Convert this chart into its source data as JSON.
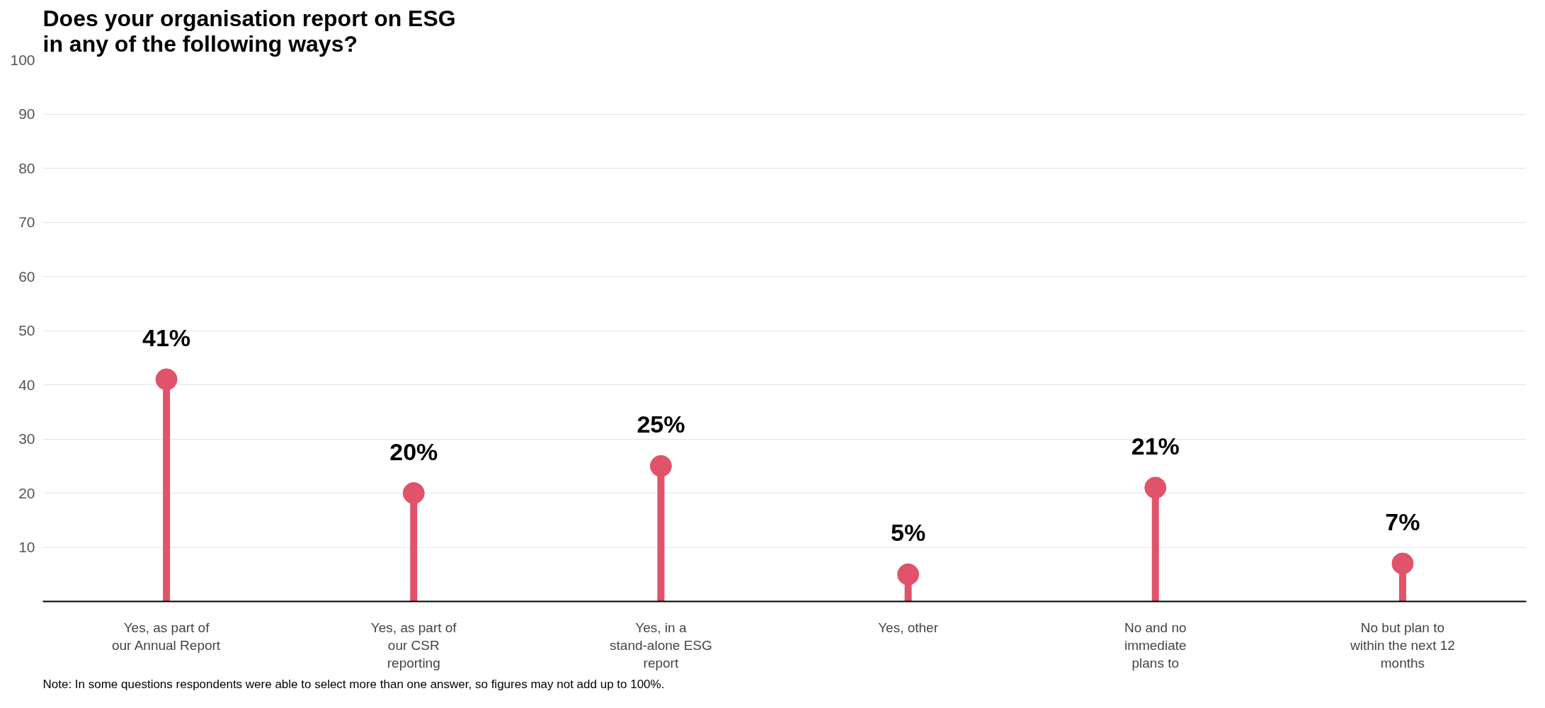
{
  "chart_data": {
    "type": "lollipop",
    "title": "Does your organisation report on ESG\nin any of the following ways?",
    "categories": [
      "Yes, as part of\nour Annual Report",
      "Yes, as part of\nour CSR\nreporting",
      "Yes, in a\nstand-alone ESG\nreport",
      "Yes, other",
      "No and no\nimmediate\nplans to",
      "No but plan to\nwithin the next 12\nmonths"
    ],
    "values": [
      41,
      20,
      25,
      5,
      21,
      7
    ],
    "value_labels": [
      "41%",
      "20%",
      "25%",
      "5%",
      "21%",
      "7%"
    ],
    "color": "#e0536a",
    "ylim": [
      0,
      100
    ],
    "yticks": [
      10,
      20,
      30,
      40,
      50,
      60,
      70,
      80,
      90,
      100
    ],
    "grid": "y",
    "marker": "circle",
    "annotations": [
      "Note: In some questions respondents were able to select more than one answer, so figures may not add up to 100%."
    ]
  }
}
